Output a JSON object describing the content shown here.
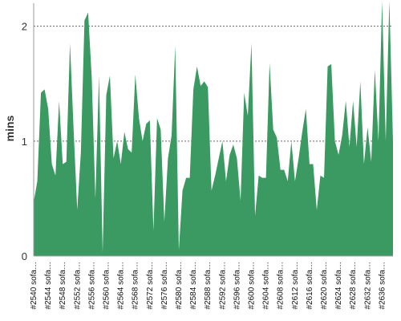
{
  "chart_data": {
    "type": "area",
    "ylabel": "mins",
    "ylim": [
      0,
      2.2
    ],
    "yticks": [
      0,
      1,
      2
    ],
    "grid": "horizontal dotted",
    "color": "#3a9a62",
    "grid_color": "#666666",
    "x_tick_labels": [
      "#2540 sofa…",
      "#2544 sofa…",
      "#2548 sofa…",
      "#2552 sofa…",
      "#2556 sofa…",
      "#2560 sofa…",
      "#2564 sofa…",
      "#2568 sofa…",
      "#2572 sofa…",
      "#2576 sofa…",
      "#2580 sofa…",
      "#2584 sofa…",
      "#2588 sofa…",
      "#2592 sofa…",
      "#2596 sofa…",
      "#2600 sofa…",
      "#2604 sofa…",
      "#2608 sofa…",
      "#2612 sofa…",
      "#2616 sofa…",
      "#2620 sofa…",
      "#2624 sofa…",
      "#2628 sofa…",
      "#2632 sofa…",
      "#2636 sofa…"
    ],
    "x": [
      2540,
      2541,
      2542,
      2543,
      2544,
      2545,
      2546,
      2547,
      2548,
      2549,
      2550,
      2551,
      2552,
      2553,
      2554,
      2555,
      2556,
      2557,
      2558,
      2559,
      2560,
      2561,
      2562,
      2563,
      2564,
      2565,
      2566,
      2567,
      2568,
      2569,
      2570,
      2571,
      2572,
      2573,
      2574,
      2575,
      2576,
      2577,
      2578,
      2579,
      2580,
      2581,
      2582,
      2583,
      2584,
      2585,
      2586,
      2587,
      2588,
      2589,
      2590,
      2591,
      2592,
      2593,
      2594,
      2595,
      2596,
      2597,
      2598,
      2599,
      2600,
      2601,
      2602,
      2603,
      2604,
      2605,
      2606,
      2607,
      2608,
      2609,
      2610,
      2611,
      2612,
      2613,
      2614,
      2615,
      2616,
      2617,
      2618,
      2619,
      2620,
      2621,
      2622,
      2623,
      2624,
      2625,
      2626,
      2627,
      2628,
      2629,
      2630,
      2631,
      2632,
      2633,
      2634,
      2635,
      2636,
      2637,
      2638,
      2639
    ],
    "values": [
      0.47,
      0.65,
      1.42,
      1.45,
      1.28,
      0.8,
      0.7,
      1.35,
      0.8,
      0.82,
      1.85,
      1.1,
      0.4,
      0.9,
      2.05,
      2.12,
      1.55,
      0.5,
      1.57,
      0.03,
      1.4,
      1.57,
      0.85,
      1.0,
      0.8,
      1.08,
      0.93,
      0.9,
      1.58,
      1.2,
      1.0,
      1.15,
      1.18,
      0.22,
      1.2,
      1.1,
      0.3,
      0.85,
      1.05,
      1.83,
      0.05,
      0.57,
      0.68,
      0.68,
      1.45,
      1.65,
      1.48,
      1.52,
      1.47,
      0.57,
      0.7,
      0.85,
      1.0,
      0.65,
      0.88,
      0.97,
      0.85,
      0.48,
      1.42,
      1.22,
      1.85,
      0.35,
      0.7,
      0.68,
      0.68,
      1.68,
      1.1,
      1.03,
      0.75,
      0.75,
      0.65,
      1.0,
      0.65,
      0.85,
      1.08,
      1.28,
      0.8,
      0.8,
      0.4,
      0.7,
      0.68,
      1.65,
      1.67,
      1.0,
      0.88,
      1.05,
      1.35,
      0.95,
      1.35,
      0.95,
      1.52,
      0.8,
      1.12,
      0.82,
      1.62,
      1.0,
      2.22,
      1.0,
      2.22,
      1.0
    ]
  }
}
